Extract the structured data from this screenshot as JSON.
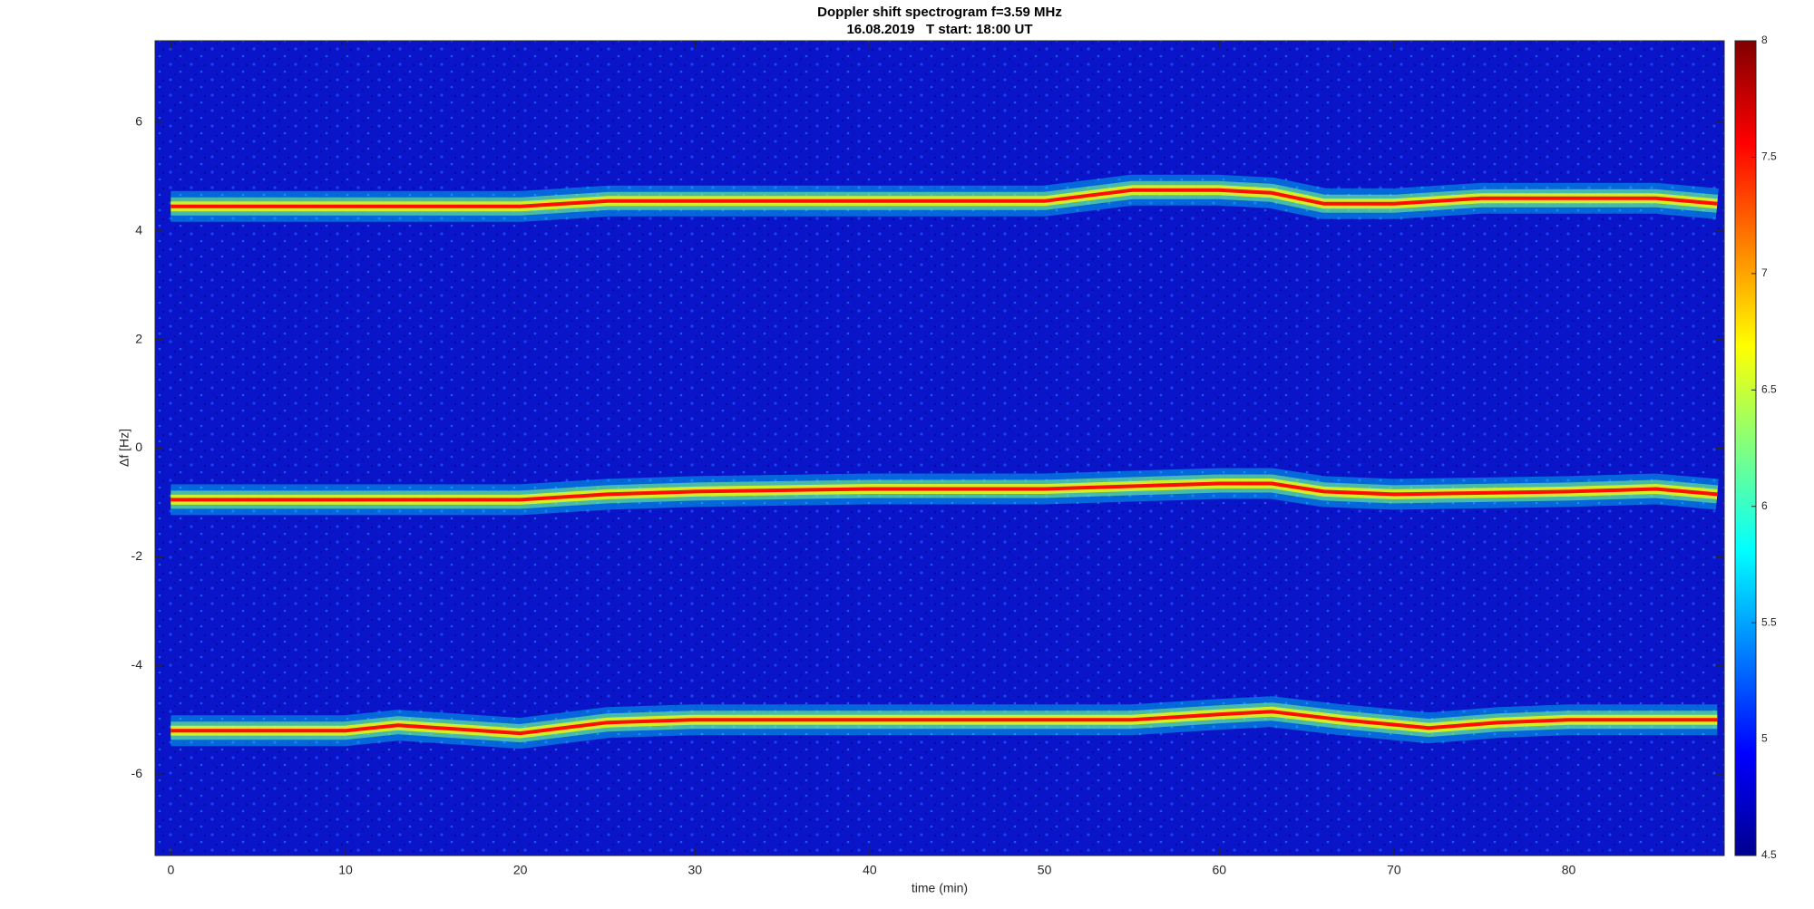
{
  "chart_data": {
    "type": "spectrogram",
    "title": "Doppler shift spectrogram f=3.59 MHz",
    "subtitle": "16.08.2019   T start: 18:00 UT",
    "x_label": "time (min)",
    "y_label": "Δf [Hz]",
    "xlim": [
      -0.9,
      88.9
    ],
    "ylim": [
      -7.5,
      7.5
    ],
    "xticks": [
      0,
      10,
      20,
      30,
      40,
      50,
      60,
      70,
      80
    ],
    "yticks": [
      -6,
      -4,
      -2,
      0,
      2,
      4,
      6
    ],
    "clim": [
      4.5,
      8
    ],
    "cticks": [
      4.5,
      5,
      5.5,
      6,
      6.5,
      7,
      7.5,
      8
    ],
    "colormap": [
      "#00008f",
      "#0000ff",
      "#0080ff",
      "#00ffff",
      "#80ff80",
      "#ffff00",
      "#ff8000",
      "#ff0000",
      "#800000"
    ],
    "traces": [
      {
        "x": [
          0,
          10,
          20,
          25,
          30,
          40,
          50,
          55,
          60,
          63,
          66,
          70,
          75,
          80,
          85,
          88.5
        ],
        "values": [
          4.45,
          4.45,
          4.45,
          4.55,
          4.55,
          4.55,
          4.55,
          4.75,
          4.75,
          4.7,
          4.5,
          4.5,
          4.6,
          4.6,
          4.6,
          4.5
        ]
      },
      {
        "x": [
          0,
          10,
          20,
          25,
          30,
          40,
          50,
          60,
          63,
          66,
          70,
          80,
          85,
          88.5
        ],
        "values": [
          -0.95,
          -0.95,
          -0.95,
          -0.85,
          -0.8,
          -0.75,
          -0.75,
          -0.65,
          -0.65,
          -0.8,
          -0.85,
          -0.8,
          -0.75,
          -0.85
        ]
      },
      {
        "x": [
          0,
          10,
          13,
          20,
          25,
          30,
          40,
          50,
          55,
          60,
          63,
          67,
          72,
          76,
          80,
          85,
          88.5
        ],
        "values": [
          -5.2,
          -5.2,
          -5.1,
          -5.25,
          -5.05,
          -5.0,
          -5.0,
          -5.0,
          -5.0,
          -4.9,
          -4.85,
          -5.0,
          -5.15,
          -5.05,
          -5.0,
          -5.0,
          -5.0
        ]
      }
    ]
  }
}
